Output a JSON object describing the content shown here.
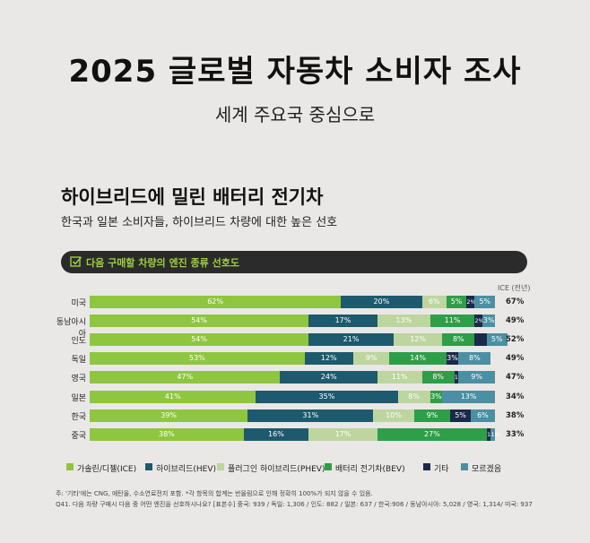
{
  "header": {
    "title": "2025 글로벌 자동차 소비자 조사",
    "subtitle": "세계 주요국 중심으로"
  },
  "section": {
    "title": "하이브리드에 밀린 배터리 전기차",
    "subtitle": "한국과 일본 소비자들, 하이브리드 차량에 대한 높은 선호"
  },
  "question": {
    "text": "다음 구매할 차량의 엔진 종류 선호도",
    "icon": "checkbox-icon"
  },
  "chart_data": {
    "type": "bar",
    "orientation": "horizontal",
    "stacked": true,
    "ice_header": "ICE (전년)",
    "categories": [
      "미국",
      "동남아시아",
      "인도",
      "독일",
      "영국",
      "일본",
      "한국",
      "중국"
    ],
    "ice_prev_labels": [
      "67%",
      "49%",
      "52%",
      "49%",
      "47%",
      "34%",
      "38%",
      "33%"
    ],
    "series": [
      {
        "name": "가솔린/디젤(ICE)",
        "color": "#8fc640",
        "text_color": "#ffffff",
        "values": [
          62,
          54,
          54,
          53,
          47,
          41,
          39,
          38
        ],
        "labels": [
          "62%",
          "54%",
          "54%",
          "53%",
          "47%",
          "41%",
          "39%",
          "38%"
        ]
      },
      {
        "name": "하이브리드(HEV)",
        "color": "#1e5a6e",
        "text_color": "#ffffff",
        "values": [
          20,
          17,
          21,
          12,
          24,
          35,
          31,
          16
        ],
        "labels": [
          "20%",
          "17%",
          "21%",
          "12%",
          "24%",
          "35%",
          "31%",
          "16%"
        ]
      },
      {
        "name": "플러그인 하이브리드(PHEV)",
        "color": "#bdd59f",
        "text_color": "#ffffff",
        "values": [
          6,
          13,
          12,
          9,
          11,
          8,
          10,
          17
        ],
        "labels": [
          "6%",
          "13%",
          "12%",
          "9%",
          "11%",
          "8%",
          "10%",
          "17%"
        ]
      },
      {
        "name": "배터리 전기차(BEV)",
        "color": "#2e9e48",
        "text_color": "#ffffff",
        "values": [
          5,
          11,
          8,
          14,
          8,
          3,
          9,
          27
        ],
        "labels": [
          "5%",
          "11%",
          "8%",
          "14%",
          "8%",
          "3%",
          "9%",
          "27%"
        ]
      },
      {
        "name": "기타",
        "color": "#1b2a4a",
        "text_color": "#ffffff",
        "values": [
          2,
          2,
          3,
          3,
          1,
          0,
          5,
          1
        ],
        "labels": [
          "2%",
          "2%",
          "",
          "3%",
          "1%",
          "",
          "5%",
          "1%"
        ]
      },
      {
        "name": "모르겠음",
        "color": "#4b8fa3",
        "text_color": "#ffffff",
        "values": [
          5,
          3,
          5,
          8,
          9,
          13,
          6,
          1
        ],
        "labels": [
          "5%",
          "3%",
          "5%",
          "8%",
          "9%",
          "13%",
          "6%",
          "1%"
        ]
      }
    ],
    "xlim": [
      0,
      100
    ]
  },
  "footnotes": {
    "line1": "주: '기타'에는 CNG, 에탄올, 수소연료전지 포함. *각 항목의 합계는 반올림으로 인해 정확히 100%가 되지 않을 수 있음.",
    "line2": "Q41. 다음 차량 구매시 다음 중 어떤 엔진을 선호하시나요? [표본수] 중국: 939 / 독일: 1,306 / 인도: 882 / 일본: 637 / 한국:906 / 동남아시아: 5,028 / 영국: 1,314/ 미국: 937"
  }
}
